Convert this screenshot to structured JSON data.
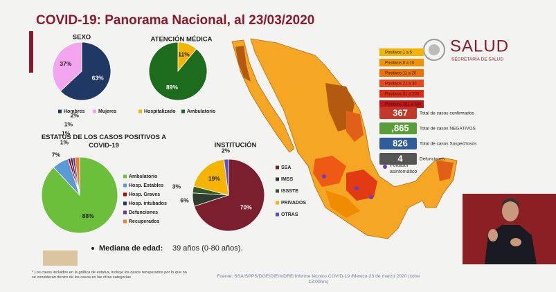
{
  "header": {
    "title": "COVID-19: Panorama Nacional, al 23/03/2020"
  },
  "logo": {
    "name": "SALUD",
    "subtitle": "SECRETARÍA DE SALUD"
  },
  "chart_data": [
    {
      "type": "pie",
      "title": "SEXO",
      "categories": [
        "Hombres",
        "Mujeres"
      ],
      "values": [
        63,
        37
      ],
      "value_labels": [
        "63%",
        "37%"
      ],
      "colors": [
        "#1f3864",
        "#f3a6ef"
      ]
    },
    {
      "type": "pie",
      "title": "ATENCIÓN MÉDICA",
      "categories": [
        "Hospitalizado",
        "Ambulatorio"
      ],
      "values": [
        11,
        89
      ],
      "value_labels": [
        "11%",
        "89%"
      ],
      "colors": [
        "#f5b400",
        "#1d6b1d"
      ]
    },
    {
      "type": "pie",
      "title": "ESTATUS DE LOS CASOS POSITIVOS A COVID-19",
      "categories": [
        "Ambulatorio",
        "Hosp. Estables",
        "Hosp. Graves",
        "Hosp. intubados",
        "Defunciones",
        "Recuperados"
      ],
      "values": [
        88,
        7,
        1,
        1,
        1,
        2
      ],
      "value_labels": [
        "88%",
        "7%",
        "1%",
        "1%",
        "1%",
        "2%"
      ],
      "colors": [
        "#6cbf3a",
        "#5b9bd5",
        "#c00000",
        "#1f3864",
        "#7030a0",
        "#ed7d31"
      ]
    },
    {
      "type": "pie",
      "title": "INSTITUCIÓN",
      "categories": [
        "SSA",
        "IMSS",
        "ISSSTE",
        "PRIVADOS",
        "OTRAS"
      ],
      "values": [
        70,
        6,
        3,
        19,
        2
      ],
      "value_labels": [
        "70%",
        "6%",
        "3%",
        "19%",
        "2%"
      ],
      "colors": [
        "#7b1e2e",
        "#2f3b2f",
        "#375623",
        "#f5b400",
        "#5a4fcf"
      ]
    }
  ],
  "map_legend": [
    {
      "label": "Positivos 1 a 5",
      "color": "#f5b400"
    },
    {
      "label": "Positivos 6 a 10",
      "color": "#f39200"
    },
    {
      "label": "Positivos 11 a 20",
      "color": "#ee7000"
    },
    {
      "label": "Positivos 21 a 30",
      "color": "#e8481c"
    },
    {
      "label": "Positivos 31 a 200",
      "color": "#e02a12"
    },
    {
      "label": "Positivos 201 a 500",
      "color": "#c41414"
    }
  ],
  "stats": [
    {
      "value": "367",
      "label": "Total de casos confirmados",
      "color": "#c0392b"
    },
    {
      "value": ",865",
      "label": "Total de casos NEGATIVOS",
      "color": "#5a9e3a"
    },
    {
      "value": "826",
      "label": "Total de casos Sospechosos",
      "color": "#2f5d9a"
    },
    {
      "value": "4",
      "label": "Defunciones",
      "color": "#555555"
    }
  ],
  "asymptomatic": "Portador asintomático",
  "median_age": {
    "label": "Mediana de edad:",
    "value": "39 años (0-80 años)."
  },
  "footnote": "* Los casos incluidos en la gráfica de estatus, incluye los casos recuperados por lo que no se consideran dentro de los casos en las otras categorías",
  "source": "Fuente: SSA/SPPS/DGE/DIE/InDRE/Informe técnico.COVID-19 /Mexico-23 de marzo 2020 (corte 13:00hrs)"
}
